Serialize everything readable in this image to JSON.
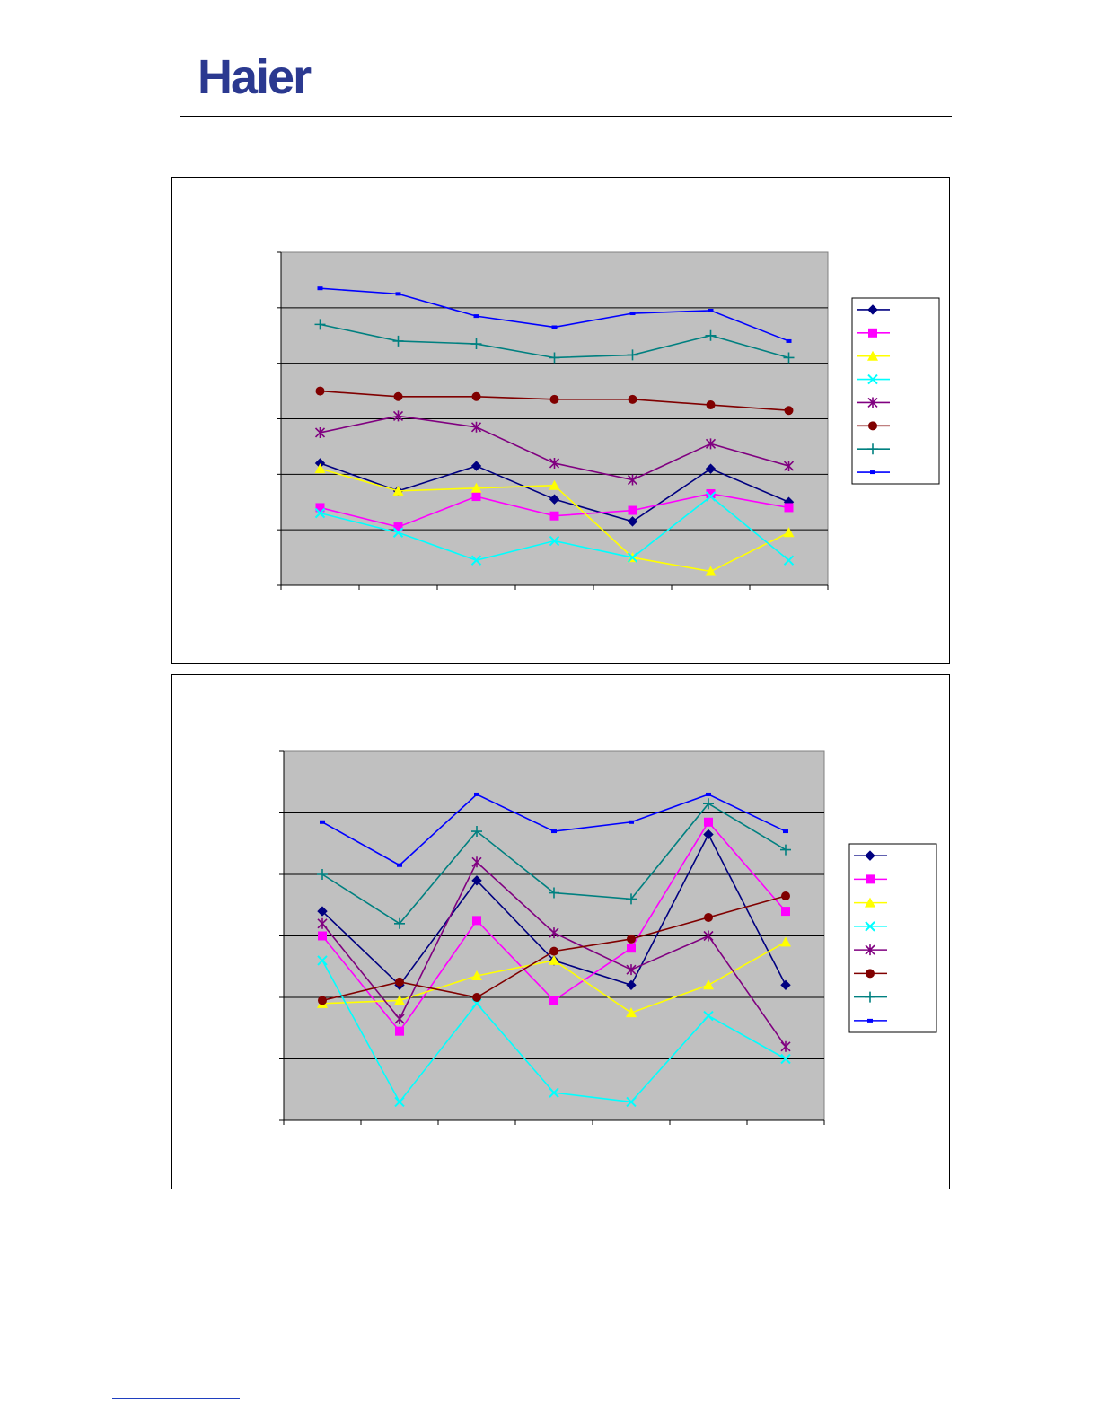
{
  "brand": {
    "logo_text": "Haier",
    "logo_color": "#2b3990"
  },
  "colors": {
    "plot_background": "#c0c0c0",
    "gridline": "#000000"
  },
  "chart_data": [
    {
      "type": "line",
      "x": [
        1,
        2,
        3,
        4,
        5,
        6,
        7
      ],
      "ylim": [
        0,
        6
      ],
      "grid": "horizontal",
      "legend_position": "right",
      "series": [
        {
          "marker": "diamond",
          "color": "#000080",
          "values": [
            2.2,
            1.7,
            2.15,
            1.55,
            1.15,
            2.1,
            1.5
          ]
        },
        {
          "marker": "square",
          "color": "#ff00ff",
          "values": [
            1.4,
            1.05,
            1.6,
            1.25,
            1.35,
            1.65,
            1.4
          ]
        },
        {
          "marker": "triangle",
          "color": "#ffff00",
          "values": [
            2.1,
            1.7,
            1.75,
            1.8,
            0.5,
            0.25,
            0.95
          ]
        },
        {
          "marker": "x",
          "color": "#00ffff",
          "values": [
            1.3,
            0.95,
            0.45,
            0.8,
            0.5,
            1.6,
            0.45
          ]
        },
        {
          "marker": "star",
          "color": "#800080",
          "values": [
            2.75,
            3.05,
            2.85,
            2.2,
            1.9,
            2.55,
            2.15
          ]
        },
        {
          "marker": "circle",
          "color": "#800000",
          "values": [
            3.5,
            3.4,
            3.4,
            3.35,
            3.35,
            3.25,
            3.15
          ]
        },
        {
          "marker": "plus",
          "color": "#008080",
          "values": [
            4.7,
            4.4,
            4.35,
            4.1,
            4.15,
            4.5,
            4.1
          ]
        },
        {
          "marker": "dash",
          "color": "#0000ff",
          "values": [
            5.35,
            5.25,
            4.85,
            4.65,
            4.9,
            4.95,
            4.4
          ]
        }
      ]
    },
    {
      "type": "line",
      "x": [
        1,
        2,
        3,
        4,
        5,
        6,
        7
      ],
      "ylim": [
        0,
        6
      ],
      "grid": "horizontal",
      "legend_position": "right",
      "series": [
        {
          "marker": "diamond",
          "color": "#000080",
          "values": [
            3.4,
            2.2,
            3.9,
            2.6,
            2.2,
            4.65,
            2.2
          ]
        },
        {
          "marker": "square",
          "color": "#ff00ff",
          "values": [
            3.0,
            1.45,
            3.25,
            1.95,
            2.8,
            4.85,
            3.4
          ]
        },
        {
          "marker": "triangle",
          "color": "#ffff00",
          "values": [
            1.9,
            1.95,
            2.35,
            2.6,
            1.75,
            2.2,
            2.9
          ]
        },
        {
          "marker": "x",
          "color": "#00ffff",
          "values": [
            2.6,
            0.3,
            1.9,
            0.45,
            0.3,
            1.7,
            1.0
          ]
        },
        {
          "marker": "star",
          "color": "#800080",
          "values": [
            3.2,
            1.65,
            4.2,
            3.05,
            2.45,
            3.0,
            1.2
          ]
        },
        {
          "marker": "circle",
          "color": "#800000",
          "values": [
            1.95,
            2.25,
            2.0,
            2.75,
            2.95,
            3.3,
            3.65
          ]
        },
        {
          "marker": "plus",
          "color": "#008080",
          "values": [
            4.0,
            3.2,
            4.7,
            3.7,
            3.6,
            5.15,
            4.4
          ]
        },
        {
          "marker": "dash",
          "color": "#0000ff",
          "values": [
            4.85,
            4.15,
            5.3,
            4.7,
            4.85,
            5.3,
            4.7
          ]
        }
      ]
    }
  ]
}
